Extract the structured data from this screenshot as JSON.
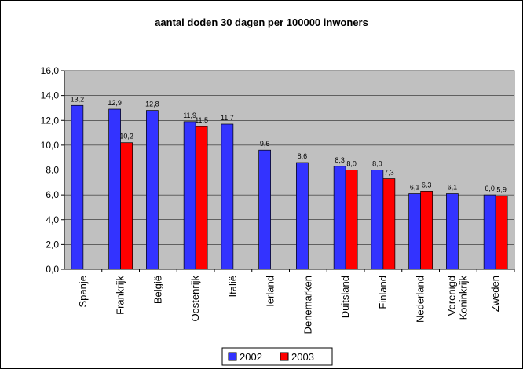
{
  "chart_data": {
    "type": "bar",
    "title": "aantal doden 30 dagen per 100000 inwoners",
    "categories": [
      "Spanje",
      "Frankrijk",
      "België",
      "Oostenrijk",
      "Italië",
      "Ierland",
      "Denemarken",
      "Duitsland",
      "Finland",
      "Nederland",
      "Verenigd Koninkrijk",
      "Zweden"
    ],
    "series": [
      {
        "name": "2002",
        "color": "#3333ff",
        "values": [
          13.2,
          12.9,
          12.8,
          11.9,
          11.7,
          9.6,
          8.6,
          8.3,
          8.0,
          6.1,
          6.1,
          6.0
        ],
        "value_labels": [
          "13,2",
          "12,9",
          "12,8",
          "11,9",
          "11,7",
          "9,6",
          "8,6",
          "8,3",
          "8,0",
          "6,1",
          "6,1",
          "6,0"
        ]
      },
      {
        "name": "2003",
        "color": "#ff0000",
        "values": [
          null,
          10.2,
          null,
          11.5,
          null,
          null,
          null,
          8.0,
          7.3,
          6.3,
          null,
          5.9
        ],
        "value_labels": [
          null,
          "10,2",
          null,
          "11,5",
          null,
          null,
          null,
          "8,0",
          "7,3",
          "6,3",
          null,
          "5,9"
        ]
      }
    ],
    "ylim": [
      0,
      16
    ],
    "yticks": [
      {
        "value": 0,
        "label": "0,0"
      },
      {
        "value": 2,
        "label": "2,0"
      },
      {
        "value": 4,
        "label": "4,0"
      },
      {
        "value": 6,
        "label": "6,0"
      },
      {
        "value": 8,
        "label": "8,0"
      },
      {
        "value": 10,
        "label": "10,0"
      },
      {
        "value": 12,
        "label": "12,0"
      },
      {
        "value": 14,
        "label": "14,0"
      },
      {
        "value": 16,
        "label": "16,0"
      }
    ],
    "grid": true,
    "legend": "bottom"
  }
}
